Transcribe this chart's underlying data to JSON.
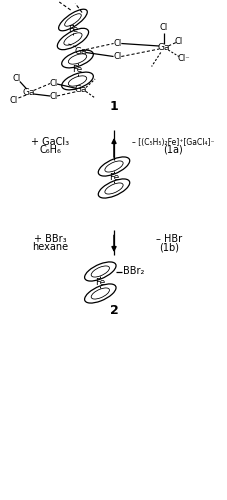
{
  "background_color": "#ffffff",
  "text_color": "#000000",
  "figsize": [
    2.28,
    5.0
  ],
  "dpi": 100,
  "label_1": "1",
  "label_2": "2",
  "left_text_upper_1": "+ GaCl₃",
  "left_text_upper_2": "C₆H₆",
  "right_text_upper_1": "– [(C₅H₅)₂Fe]⁺[GaCl₄]⁻",
  "right_text_upper_2": "(1a)",
  "left_text_lower_1": "+ BBr₃",
  "left_text_lower_2": "hexane",
  "right_text_lower_1": "– HBr",
  "right_text_lower_2": "(1b)",
  "BBr2_label": "BBr₂",
  "Cl_minus": "Cl⁻"
}
